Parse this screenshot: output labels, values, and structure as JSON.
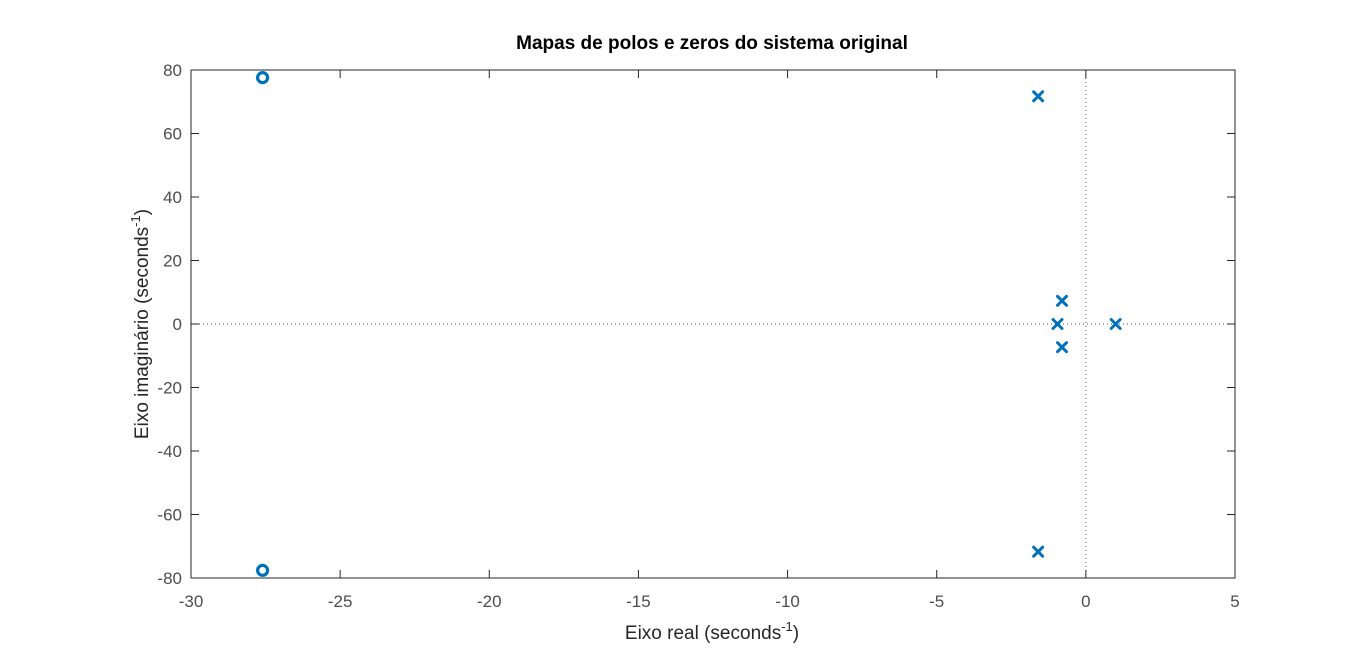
{
  "chart_data": {
    "type": "scatter",
    "title": "Mapas de polos e zeros do sistema original",
    "xlabel": {
      "prefix": "Eixo real (seconds",
      "superscript": "-1",
      "suffix": ")"
    },
    "ylabel": {
      "prefix": "Eixo imaginário (seconds",
      "superscript": "-1",
      "suffix": ")"
    },
    "xlim": [
      -30,
      5
    ],
    "ylim": [
      -80,
      80
    ],
    "xticks": [
      -30,
      -25,
      -20,
      -15,
      -10,
      -5,
      0,
      5
    ],
    "yticks": [
      -80,
      -60,
      -40,
      -20,
      0,
      20,
      40,
      60,
      80
    ],
    "grid": false,
    "reference_lines": {
      "x": 0,
      "y": 0,
      "style": "dotted"
    },
    "color": "#0072bd",
    "series": [
      {
        "marker": "x",
        "points": [
          {
            "x": -1.6,
            "y": 71.7
          },
          {
            "x": -1.6,
            "y": -71.7
          },
          {
            "x": -0.8,
            "y": 7.3
          },
          {
            "x": -0.8,
            "y": -7.3
          },
          {
            "x": -0.95,
            "y": 0
          },
          {
            "x": 1.0,
            "y": 0
          }
        ]
      },
      {
        "marker": "o",
        "points": [
          {
            "x": -27.6,
            "y": 77.6
          },
          {
            "x": -27.6,
            "y": -77.6
          }
        ]
      }
    ]
  }
}
